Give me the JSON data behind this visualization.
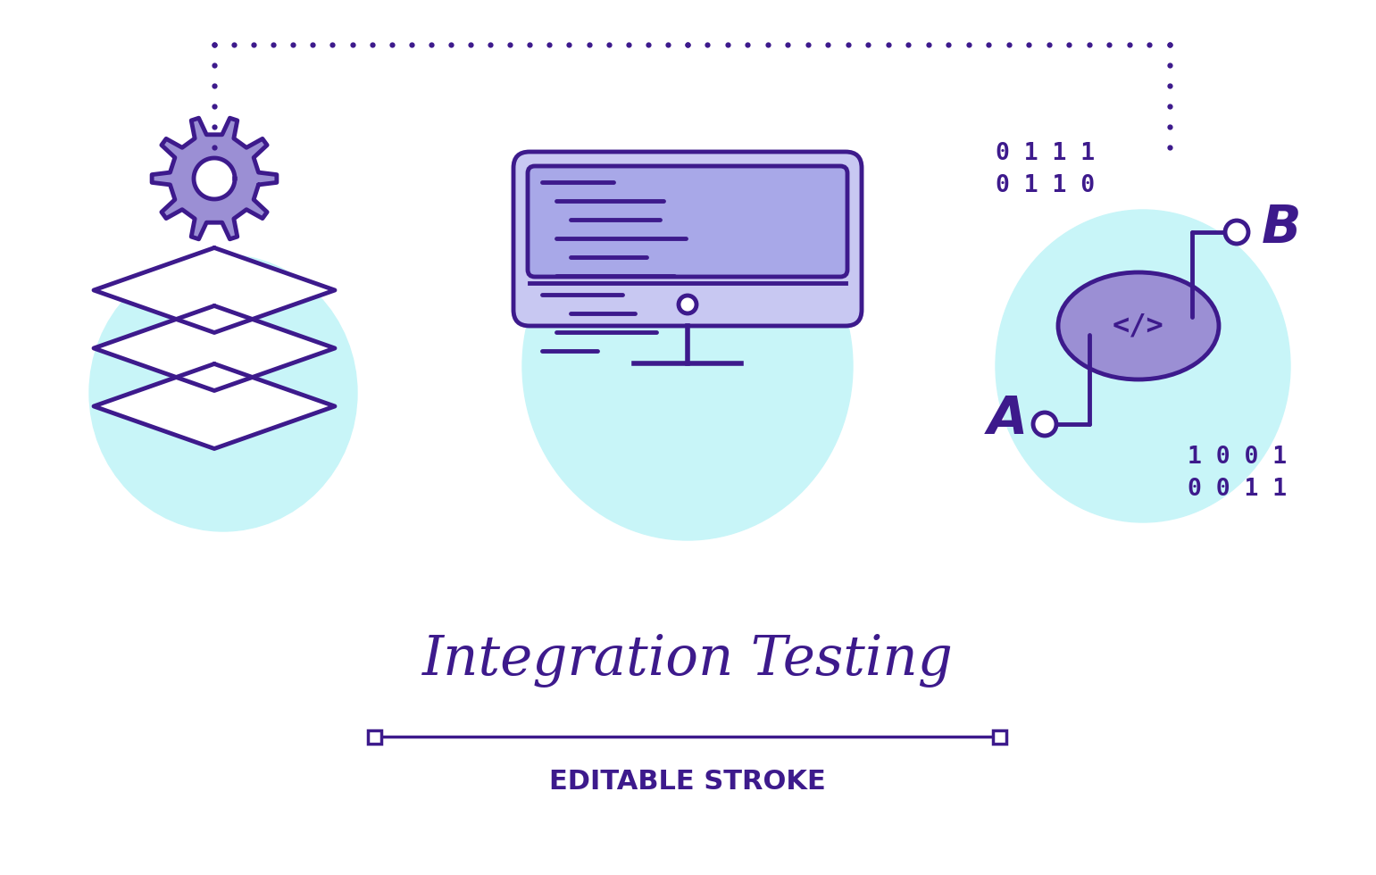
{
  "bg_color": "#ffffff",
  "purple": "#3d1a8c",
  "purple_fill": "#9b8fd4",
  "cyan": "#c8f5f8",
  "title_text": "Integration Testing",
  "subtitle_text": "EDITABLE STROKE",
  "title_fontsize": 44,
  "subtitle_fontsize": 22,
  "lw": 3.5
}
